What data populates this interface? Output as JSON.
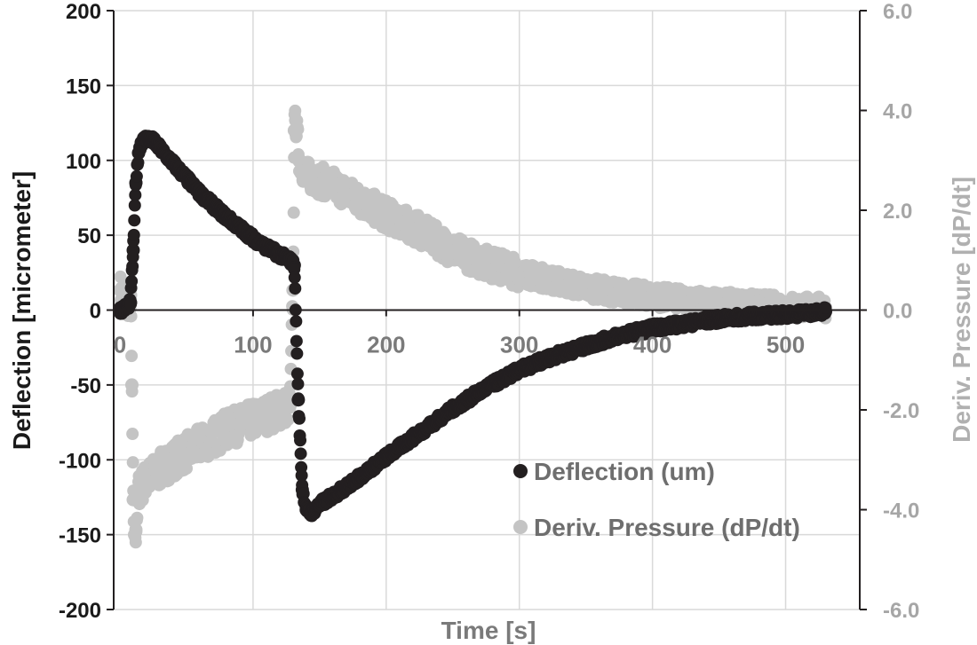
{
  "chart_data": {
    "type": "scatter",
    "xlabel": "Time [s]",
    "ylabel": "Deflection [micrometer]",
    "y2label": "Deriv. Pressure [dP/dt]",
    "xlim": [
      0,
      535
    ],
    "ylim": [
      -200,
      200
    ],
    "y2lim": [
      -6.0,
      6.0
    ],
    "x_ticks": [
      "0",
      "100",
      "200",
      "300",
      "400",
      "500"
    ],
    "x_tick_values": [
      0,
      100,
      200,
      300,
      400,
      500
    ],
    "y_ticks": [
      "200",
      "150",
      "100",
      "50",
      "0",
      "-50",
      "-100",
      "-150",
      "-200"
    ],
    "y_tick_values": [
      200,
      150,
      100,
      50,
      0,
      -50,
      -100,
      -150,
      -200
    ],
    "y2_ticks": [
      "6.0",
      "4.0",
      "2.0",
      "0.0",
      "-2.0",
      "-4.0",
      "-6.0"
    ],
    "y2_tick_values": [
      6,
      4,
      2,
      0,
      -2,
      -4,
      -6
    ],
    "grid": true,
    "legend_position": "bottom-right",
    "series": [
      {
        "name": "Deflection (um)",
        "axis": "left",
        "color": "#231f20",
        "points": [
          [
            0,
            0
          ],
          [
            5,
            2
          ],
          [
            8,
            5
          ],
          [
            10,
            40
          ],
          [
            12,
            85
          ],
          [
            14,
            105
          ],
          [
            16,
            112
          ],
          [
            20,
            115
          ],
          [
            25,
            113
          ],
          [
            30,
            108
          ],
          [
            40,
            98
          ],
          [
            50,
            88
          ],
          [
            60,
            78
          ],
          [
            70,
            70
          ],
          [
            80,
            62
          ],
          [
            90,
            55
          ],
          [
            100,
            48
          ],
          [
            110,
            42
          ],
          [
            120,
            37
          ],
          [
            128,
            33
          ],
          [
            131,
            30
          ],
          [
            134,
            -60
          ],
          [
            137,
            -120
          ],
          [
            140,
            -133
          ],
          [
            143,
            -136
          ],
          [
            150,
            -130
          ],
          [
            175,
            -115
          ],
          [
            200,
            -98
          ],
          [
            225,
            -82
          ],
          [
            250,
            -66
          ],
          [
            275,
            -52
          ],
          [
            300,
            -40
          ],
          [
            325,
            -31
          ],
          [
            350,
            -24
          ],
          [
            375,
            -17
          ],
          [
            400,
            -12
          ],
          [
            425,
            -9
          ],
          [
            450,
            -6
          ],
          [
            475,
            -4
          ],
          [
            500,
            -3
          ],
          [
            530,
            -1
          ]
        ]
      },
      {
        "name": "Deriv. Pressure (dP/dt)",
        "axis": "right",
        "color": "#c4c4c4",
        "points": [
          [
            0,
            0.4
          ],
          [
            4,
            0.1
          ],
          [
            8,
            0.3
          ],
          [
            9,
            -1.5
          ],
          [
            10,
            -3.8
          ],
          [
            11,
            -4.5
          ],
          [
            12,
            -4.4
          ],
          [
            14,
            -3.6
          ],
          [
            20,
            -3.4
          ],
          [
            40,
            -3.0
          ],
          [
            60,
            -2.7
          ],
          [
            80,
            -2.4
          ],
          [
            100,
            -2.2
          ],
          [
            120,
            -2.0
          ],
          [
            128,
            -1.9
          ],
          [
            130,
            0.4
          ],
          [
            131,
            3.6
          ],
          [
            132,
            3.8
          ],
          [
            135,
            3.0
          ],
          [
            140,
            2.7
          ],
          [
            160,
            2.5
          ],
          [
            180,
            2.2
          ],
          [
            200,
            1.9
          ],
          [
            225,
            1.6
          ],
          [
            250,
            1.2
          ],
          [
            275,
            0.95
          ],
          [
            300,
            0.75
          ],
          [
            325,
            0.6
          ],
          [
            350,
            0.45
          ],
          [
            375,
            0.35
          ],
          [
            400,
            0.28
          ],
          [
            425,
            0.2
          ],
          [
            450,
            0.15
          ],
          [
            475,
            0.12
          ],
          [
            500,
            0.08
          ],
          [
            530,
            0.05
          ]
        ]
      }
    ]
  }
}
